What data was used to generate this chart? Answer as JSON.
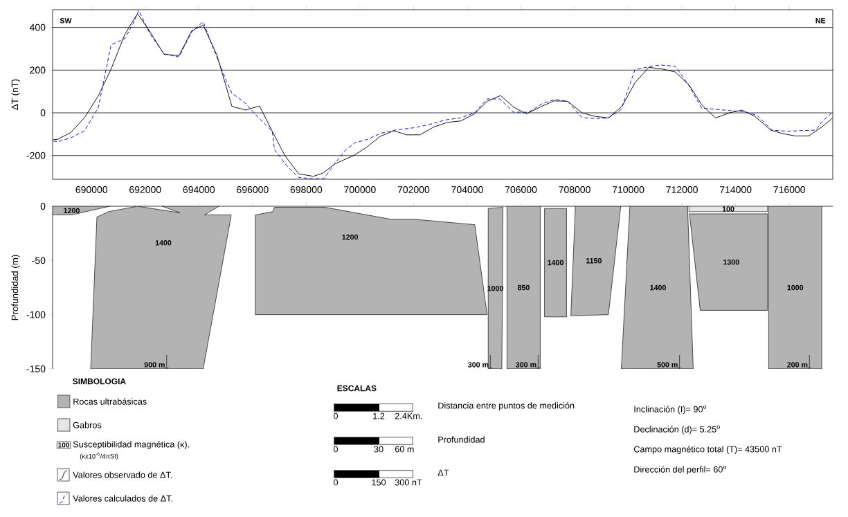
{
  "chart_data": [
    {
      "type": "line",
      "ylabel": "ΔT (nT)",
      "xlim": [
        688550,
        717620
      ],
      "ylim": [
        -311,
        483
      ],
      "xticks": [
        690000,
        692000,
        694000,
        696000,
        698000,
        700000,
        702000,
        704000,
        706000,
        708000,
        710000,
        712000,
        714000,
        716000
      ],
      "yticks": [
        -200,
        0,
        200,
        400
      ],
      "grid": "y",
      "legend": "bottom",
      "annotations": [
        "SW",
        "NE"
      ],
      "series": [
        {
          "name": "Valores observado de ΔT.",
          "color": "#000000",
          "line_style": "solid",
          "x": [
            688568,
            688740,
            689228,
            689743,
            690257,
            690729,
            691243,
            691715,
            692187,
            692702,
            693259,
            693731,
            694160,
            694674,
            695232,
            695746,
            696261,
            696732,
            697204,
            697719,
            698268,
            698611,
            699082,
            699768,
            700240,
            700755,
            701269,
            701741,
            702238,
            702727,
            703242,
            703756,
            704271,
            704743,
            705240,
            705729,
            706201,
            706715,
            707230,
            707744,
            708275,
            708747,
            709262,
            709777,
            710249,
            710764,
            711279,
            711751,
            712266,
            712738,
            713253,
            713768,
            714240,
            714712,
            715313,
            715742,
            716215,
            716730,
            717202,
            717614
          ],
          "values": [
            -126,
            -124,
            -92,
            -22,
            81,
            205,
            368,
            465,
            378,
            274,
            268,
            384,
            411,
            270,
            30,
            13,
            32,
            -86,
            -200,
            -286,
            -297,
            -283,
            -238,
            -200,
            -162,
            -110,
            -84,
            -103,
            -103,
            -68,
            -45,
            -38,
            -5,
            54,
            81,
            27,
            -5,
            27,
            56,
            54,
            0,
            -16,
            -24,
            32,
            141,
            213,
            205,
            191,
            130,
            38,
            -24,
            0,
            13,
            -16,
            -81,
            -97,
            -108,
            -108,
            -67,
            -24
          ]
        },
        {
          "name": "Valores calculados de ΔT.",
          "color": "#0000ff",
          "line_style": "dashed",
          "x": [
            688568,
            688756,
            689228,
            689743,
            690257,
            690729,
            691243,
            691544,
            691758,
            692187,
            692702,
            693259,
            693731,
            694160,
            694503,
            695017,
            695232,
            695704,
            696218,
            696732,
            696818,
            697247,
            697719,
            698233,
            698654,
            698997,
            699468,
            699811,
            700283,
            700798,
            701312,
            701998,
            702513,
            703242,
            703756,
            704271,
            704743,
            705214,
            705729,
            706287,
            706801,
            707273,
            707744,
            708275,
            708790,
            709262,
            709734,
            710249,
            710764,
            711193,
            711751,
            712223,
            712738,
            713253,
            713768,
            714283,
            714798,
            715356,
            715914,
            716515,
            716987,
            717202,
            717588
          ],
          "values": [
            -132,
            -135,
            -117,
            -84,
            27,
            319,
            348,
            416,
            480,
            368,
            276,
            262,
            378,
            427,
            314,
            151,
            92,
            49,
            -22,
            -86,
            -173,
            -243,
            -303,
            -308,
            -308,
            -249,
            -173,
            -141,
            -124,
            -95,
            -81,
            -70,
            -57,
            -32,
            -24,
            0,
            65,
            65,
            3,
            3,
            43,
            63,
            54,
            -22,
            -27,
            -24,
            16,
            202,
            216,
            224,
            218,
            135,
            22,
            16,
            11,
            5,
            -11,
            -81,
            -86,
            -83,
            -81,
            -43,
            0
          ]
        }
      ]
    },
    {
      "type": "area",
      "ylabel": "Profundidad (m)",
      "xlim": [
        688550,
        717620
      ],
      "ylim": [
        -150,
        0
      ],
      "xticks": [
        690000,
        692000,
        694000,
        696000,
        698000,
        700000,
        702000,
        704000,
        706000,
        708000,
        710000,
        712000,
        714000,
        716000
      ],
      "yticks": [
        -150,
        -100,
        -50,
        0
      ],
      "tick_labels": "y",
      "legend_title": "SIMBOLOGIA",
      "series": [
        {
          "name": "1200",
          "color": "#b3b3b3",
          "x": [
            688550,
            690680,
            689250,
            688550
          ],
          "values": [
            0,
            0,
            -8,
            -8
          ]
        },
        {
          "name": "1400",
          "color": "#b3b3b3",
          "x": [
            690200,
            690630,
            691710,
            693290,
            692630,
            694750,
            694210,
            695210,
            694160,
            689970
          ],
          "values": [
            -10,
            -5,
            0,
            -6,
            0,
            0,
            -8,
            -8,
            -150,
            -150
          ]
        },
        {
          "name": "1200",
          "color": "#b3b3b3",
          "x": [
            696100,
            696750,
            696820,
            698710,
            701160,
            702020,
            704280,
            704740,
            696100
          ],
          "values": [
            -8,
            -5,
            -1,
            -1,
            -12,
            -12,
            -17,
            -100,
            -100
          ]
        },
        {
          "name": "1000",
          "color": "#b3b3b3",
          "x": [
            704780,
            705330,
            705290,
            704780
          ],
          "values": [
            -2,
            -1,
            -150,
            -150
          ]
        },
        {
          "name": "850",
          "color": "#b3b3b3",
          "x": [
            705480,
            706720,
            706720,
            705480
          ],
          "values": [
            0,
            0,
            -150,
            -150
          ]
        },
        {
          "name": "1400",
          "color": "#b3b3b3",
          "x": [
            706880,
            707700,
            707700,
            706880
          ],
          "values": [
            -2,
            -2,
            -102,
            -102
          ]
        },
        {
          "name": "1150",
          "color": "#b3b3b3",
          "x": [
            708030,
            709720,
            709260,
            707860
          ],
          "values": [
            0,
            0,
            -100,
            -101
          ]
        },
        {
          "name": "1400",
          "color": "#b3b3b3",
          "x": [
            710060,
            712210,
            712420,
            709740
          ],
          "values": [
            0,
            0,
            -150,
            -150
          ]
        },
        {
          "name": "100",
          "color": "#e6e6e6",
          "x": [
            712260,
            715190,
            715190,
            712260
          ],
          "values": [
            0,
            0,
            -5,
            -5
          ]
        },
        {
          "name": "1300",
          "color": "#b3b3b3",
          "x": [
            712280,
            715190,
            715190,
            712680
          ],
          "values": [
            -7,
            -7,
            -96,
            -96
          ]
        },
        {
          "name": "1000",
          "color": "#b3b3b3",
          "x": [
            715230,
            717210,
            717210,
            715230
          ],
          "values": [
            0,
            0,
            -150,
            -150
          ]
        }
      ],
      "annotations": [
        {
          "text": "900 m",
          "x": 692800,
          "y": -150
        },
        {
          "text": "300 m",
          "x": 704860,
          "y": -150
        },
        {
          "text": "300 m",
          "x": 706640,
          "y": -150
        },
        {
          "text": "500 m",
          "x": 711910,
          "y": -150
        },
        {
          "text": "200 m",
          "x": 716750,
          "y": -150
        },
        "Rocas ultrabásicas",
        "Gabros",
        "100",
        "Susceptibilidad magnética (κ).",
        "(κx10$^{-6}$/4πSI)"
      ]
    },
    {
      "type": "other",
      "title": "ESCALAS",
      "annotations": [
        "Distancia entre puntos de medición",
        "0",
        "1.2",
        "2.4Km.",
        "Profundidad",
        "0",
        "30",
        "60 m",
        "ΔT",
        "0",
        "150",
        "300 nT",
        "Inclinación (I)= 90$^{o}$",
        "Declinación (d)= 5.25$^{o}$",
        "Campo magnético total (T)= 43500 nT",
        "Dirección del perfil= 60$^{o}$"
      ]
    }
  ]
}
